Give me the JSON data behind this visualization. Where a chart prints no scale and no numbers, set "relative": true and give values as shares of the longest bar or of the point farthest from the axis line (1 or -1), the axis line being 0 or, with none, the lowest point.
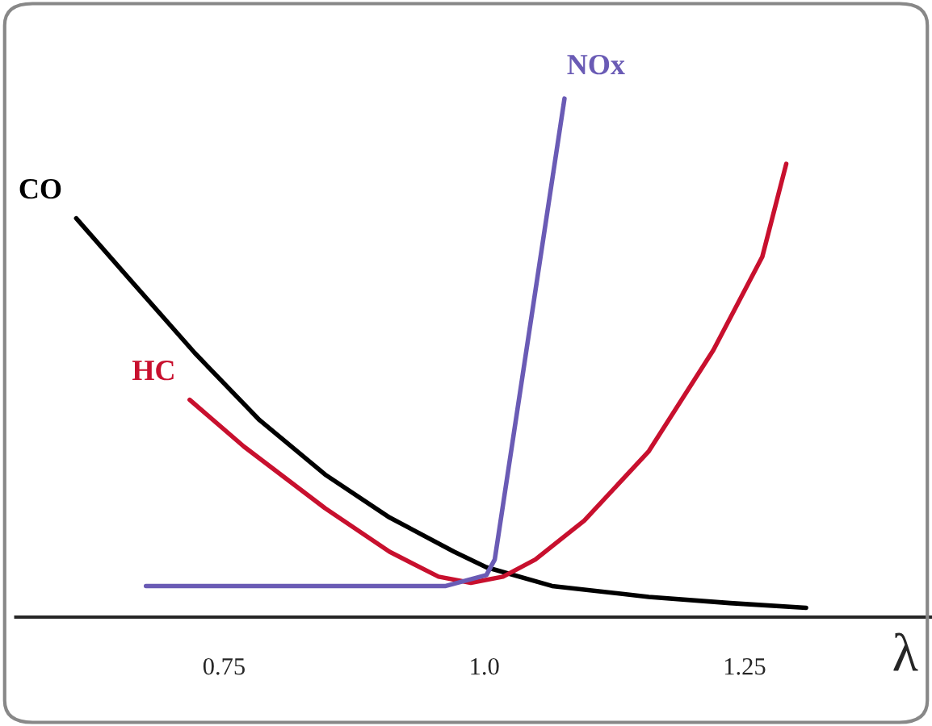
{
  "chart_data": {
    "type": "line",
    "relative": true,
    "xlabel": "λ",
    "xlim": [
      0.55,
      1.43
    ],
    "xticks": [
      0.75,
      {
        "value": 1.0,
        "label": "1.0"
      },
      1.25
    ],
    "tick_labels": "x",
    "grid": false,
    "marker": "none",
    "line_style": "solid",
    "series": [
      {
        "color": "#000000",
        "x": [
          0.608,
          0.66,
          0.722,
          0.784,
          0.847,
          0.909,
          0.971,
          1.002,
          1.065,
          1.158,
          1.236,
          1.309
        ],
        "values": [
          0.769,
          0.65,
          0.509,
          0.38,
          0.275,
          0.192,
          0.126,
          0.096,
          0.06,
          0.039,
          0.027,
          0.018
        ]
      },
      {
        "color": "#c8102e",
        "x": [
          0.717,
          0.769,
          0.847,
          0.909,
          0.956,
          0.987,
          1.018,
          1.049,
          1.096,
          1.158,
          1.22,
          1.267,
          1.29
        ],
        "values": [
          0.419,
          0.329,
          0.21,
          0.126,
          0.078,
          0.066,
          0.078,
          0.111,
          0.186,
          0.32,
          0.515,
          0.695,
          0.874
        ]
      },
      {
        "color": "#6a5bb5",
        "x": [
          0.675,
          0.963,
          1.002,
          1.01,
          1.077
        ],
        "values": [
          0.06,
          0.06,
          0.081,
          0.111,
          1.0
        ]
      }
    ],
    "annotations": [
      {
        "text": "CO",
        "x": 0.608,
        "y": 0.769
      },
      {
        "text": "HC",
        "x": 0.717,
        "y": 0.419
      },
      {
        "text": "NOx",
        "x": 1.077,
        "y": 1.0
      }
    ]
  }
}
